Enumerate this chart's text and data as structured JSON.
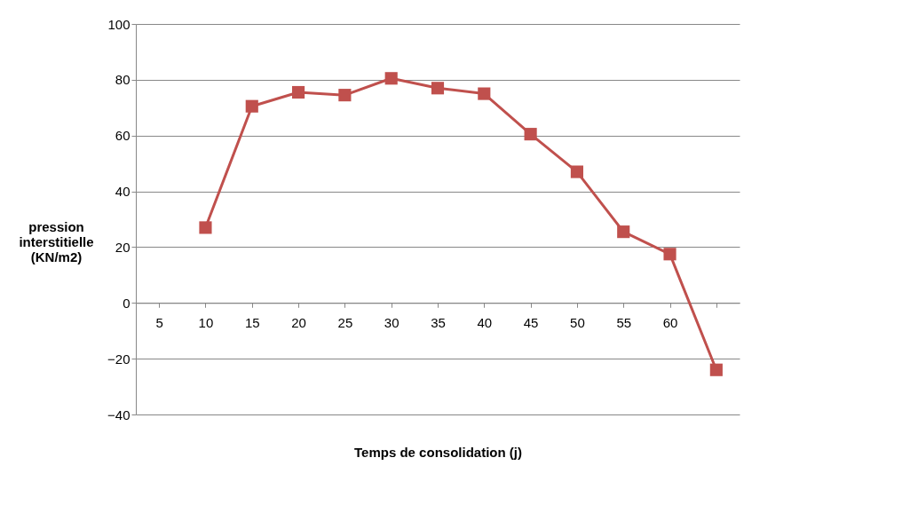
{
  "chart_data": {
    "type": "line",
    "xlabel": "Temps de consolidation (j)",
    "ylabel": "pression interstitielle (KN/m2)",
    "categories": [
      "5",
      "10",
      "15",
      "20",
      "25",
      "30",
      "35",
      "40",
      "45",
      "50",
      "55",
      "60",
      null
    ],
    "series": [
      {
        "color": "#c0504d",
        "values": [
          null,
          27,
          70.5,
          75.5,
          74.5,
          80.5,
          77,
          75,
          60.5,
          47,
          25.5,
          17.5,
          -24
        ]
      }
    ],
    "ylim": [
      -40,
      100
    ],
    "yticks": [
      -40,
      -20,
      0,
      20,
      40,
      60,
      80,
      100
    ],
    "grid": "y",
    "marker": "square",
    "line_style": "solid"
  }
}
